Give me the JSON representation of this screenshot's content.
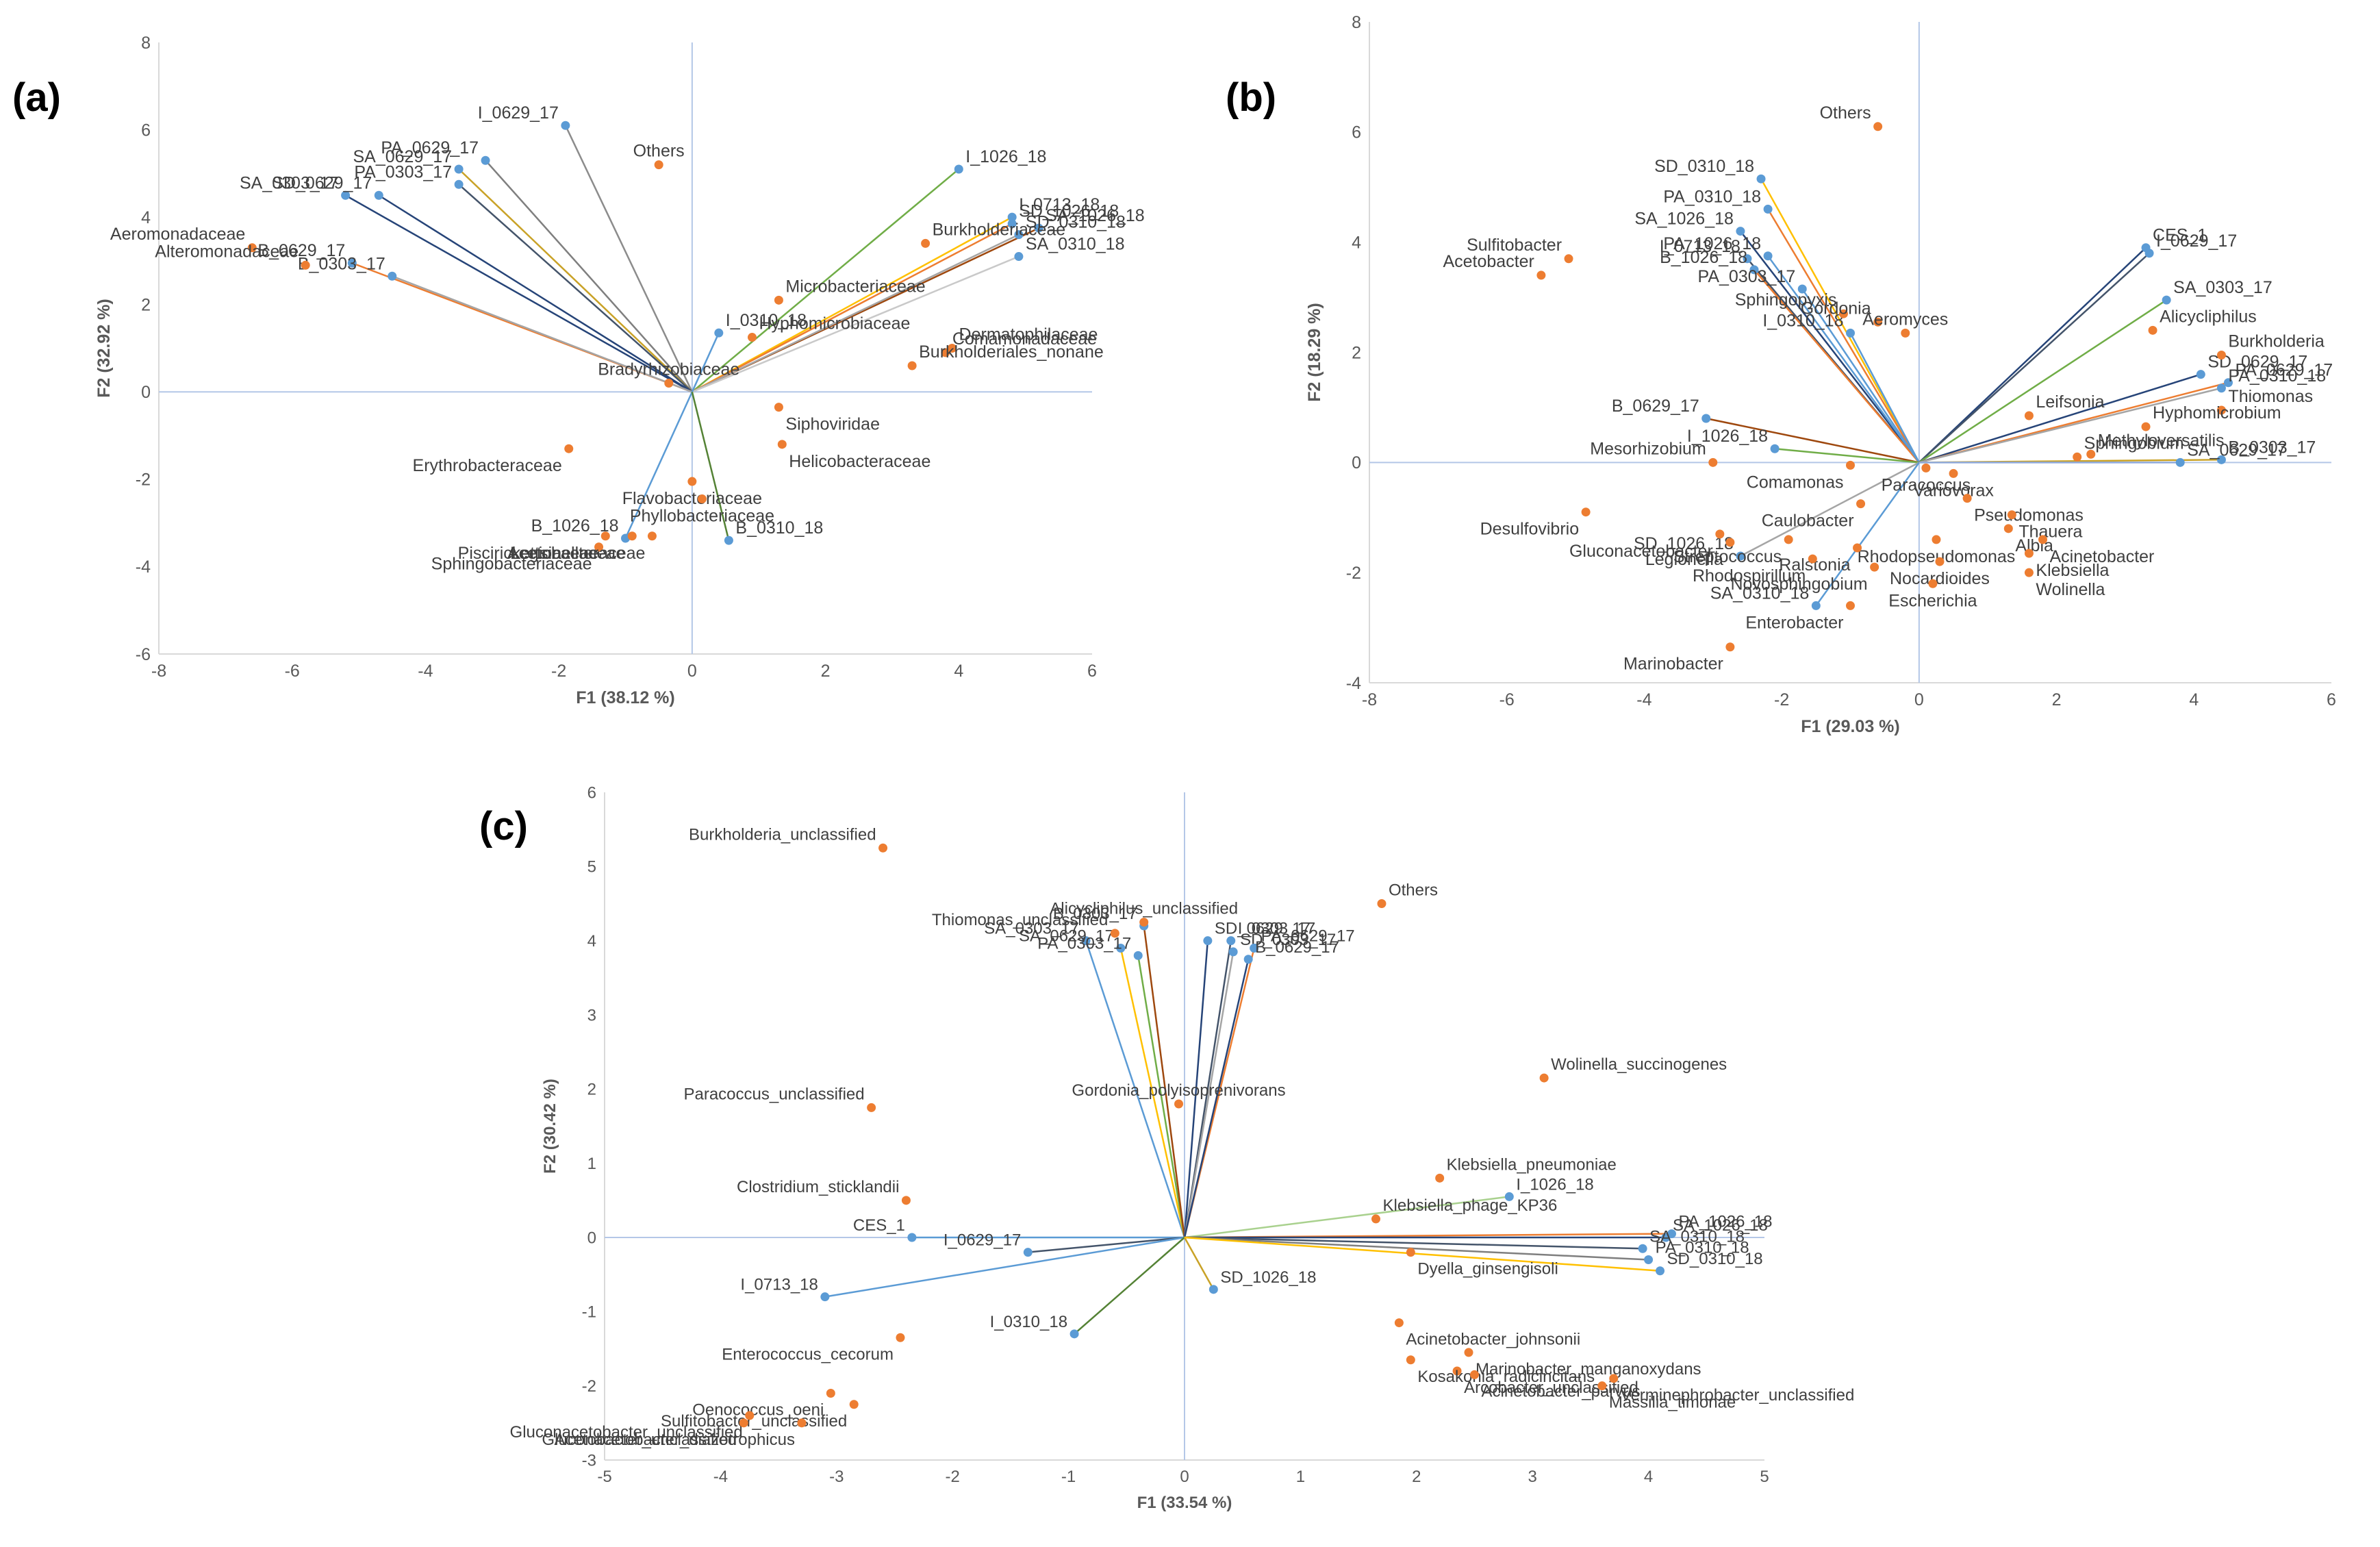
{
  "chart_data": [
    {
      "panel": "(a)",
      "type": "scatter",
      "subtype": "biplot",
      "xlabel": "F1 (38.12 %)",
      "ylabel": "F2 (32.92 %)",
      "xlim": [
        -8,
        6
      ],
      "ylim": [
        -6,
        8
      ],
      "xticks": [
        -8,
        -6,
        -4,
        -2,
        0,
        2,
        4,
        6
      ],
      "yticks": [
        -6,
        -4,
        -2,
        0,
        2,
        4,
        6,
        8
      ],
      "samples": [
        {
          "label": "I_0629_17",
          "x": -1.9,
          "y": 6.1,
          "color": "#8c8c8c"
        },
        {
          "label": "PA_0629_17",
          "x": -3.1,
          "y": 5.3,
          "color": "#7f7f7f"
        },
        {
          "label": "SA_0629_17",
          "x": -3.5,
          "y": 5.1,
          "color": "#c9a227"
        },
        {
          "label": "PA_0303_17",
          "x": -3.5,
          "y": 4.75,
          "color": "#44546a"
        },
        {
          "label": "SA_0303_17",
          "x": -5.2,
          "y": 4.5,
          "color": "#264478"
        },
        {
          "label": "SD_0629_17",
          "x": -4.7,
          "y": 4.5,
          "color": "#264478"
        },
        {
          "label": "B_0629_17",
          "x": -5.1,
          "y": 2.95,
          "color": "#ed7d31"
        },
        {
          "label": "B_0303_17",
          "x": -4.5,
          "y": 2.65,
          "color": "#a5a5a5"
        },
        {
          "label": "I_1026_18",
          "x": 4.0,
          "y": 5.1,
          "color": "#70ad47"
        },
        {
          "label": "I_0713_18",
          "x": 4.8,
          "y": 4.0,
          "color": "#ffc000"
        },
        {
          "label": "SD_1026_18",
          "x": 4.8,
          "y": 3.85,
          "color": "#ed7d31"
        },
        {
          "label": "SA_1026_18",
          "x": 5.2,
          "y": 3.75,
          "color": "#9e480e"
        },
        {
          "label": "SD_0310_18",
          "x": 4.9,
          "y": 3.6,
          "color": "#a5a5a5"
        },
        {
          "label": "SA_0310_18",
          "x": 4.9,
          "y": 3.1,
          "color": "#c9c9c9"
        },
        {
          "label": "I_0310_18",
          "x": 0.4,
          "y": 1.35,
          "color": "#5b9bd5"
        },
        {
          "label": "B_1026_18",
          "x": -1.0,
          "y": -3.35,
          "color": "#5b9bd5"
        },
        {
          "label": "B_0310_18",
          "x": 0.55,
          "y": -3.4,
          "color": "#548235"
        }
      ],
      "variables": [
        {
          "label": "Others",
          "x": -0.5,
          "y": 5.2
        },
        {
          "label": "Aeromonadaceae",
          "x": -6.6,
          "y": 3.3
        },
        {
          "label": "Alteromonadaceae",
          "x": -5.8,
          "y": 2.9
        },
        {
          "label": "Burkholderiaceae",
          "x": 3.5,
          "y": 3.4
        },
        {
          "label": "Microbacteriaceae",
          "x": 1.3,
          "y": 2.1
        },
        {
          "label": "Dermatophilaceae",
          "x": 3.9,
          "y": 1.0
        },
        {
          "label": "Comamonadaceae",
          "x": 3.8,
          "y": 0.9
        },
        {
          "label": "Hyphomicrobiaceae",
          "x": 0.9,
          "y": 1.25
        },
        {
          "label": "Burkholderiales_nonane",
          "x": 3.3,
          "y": 0.6
        },
        {
          "label": "Bradyrhizobiaceae",
          "x": -0.35,
          "y": 0.2
        },
        {
          "label": "Siphoviridae",
          "x": 1.3,
          "y": -0.35
        },
        {
          "label": "Helicobacteraceae",
          "x": 1.35,
          "y": -1.2
        },
        {
          "label": "Flavobacteriaceae",
          "x": 0.0,
          "y": -2.05
        },
        {
          "label": "Erythrobacteraceae",
          "x": -1.85,
          "y": -1.3
        },
        {
          "label": "Phyllobacteriaceae",
          "x": 0.15,
          "y": -2.45
        },
        {
          "label": "Legionellaceae",
          "x": -0.9,
          "y": -3.3
        },
        {
          "label": "Piscirickettsiaceae",
          "x": -1.3,
          "y": -3.3
        },
        {
          "label": "Sphingobacteriaceae",
          "x": -1.4,
          "y": -3.55
        },
        {
          "label": "Acetobacteraceae",
          "x": -0.6,
          "y": -3.3
        }
      ]
    },
    {
      "panel": "(b)",
      "type": "scatter",
      "subtype": "biplot",
      "xlabel": "F1 (29.03 %)",
      "ylabel": "F2 (18.29 %)",
      "xlim": [
        -8,
        6
      ],
      "ylim": [
        -4,
        8
      ],
      "xticks": [
        -8,
        -6,
        -4,
        -2,
        0,
        2,
        4,
        6
      ],
      "yticks": [
        -4,
        -2,
        0,
        2,
        4,
        6,
        8
      ],
      "samples": [
        {
          "label": "SD_0310_18",
          "x": -2.3,
          "y": 5.15,
          "color": "#ffc000"
        },
        {
          "label": "PA_0310_18",
          "x": -2.2,
          "y": 4.6,
          "color": "#ed7d31"
        },
        {
          "label": "SA_1026_18",
          "x": -2.6,
          "y": 4.2,
          "color": "#264478"
        },
        {
          "label": "PA_1026_18",
          "x": -2.2,
          "y": 3.75,
          "color": "#5b9bd5"
        },
        {
          "label": "I_0713_18",
          "x": -2.5,
          "y": 3.7,
          "color": "#44546a"
        },
        {
          "label": "B_1026_18",
          "x": -2.4,
          "y": 3.5,
          "color": "#ed7d31"
        },
        {
          "label": "PA_0303_17",
          "x": -1.7,
          "y": 3.15,
          "color": "#5b9bd5"
        },
        {
          "label": "I_0310_18",
          "x": -1.0,
          "y": 2.35,
          "color": "#5b9bd5"
        },
        {
          "label": "B_0629_17",
          "x": -3.1,
          "y": 0.8,
          "color": "#9e480e"
        },
        {
          "label": "I_1026_18",
          "x": -2.1,
          "y": 0.25,
          "color": "#70ad47"
        },
        {
          "label": "SD_1026_18",
          "x": -2.6,
          "y": -1.7,
          "color": "#a5a5a5"
        },
        {
          "label": "SA_0310_18",
          "x": -1.5,
          "y": -2.6,
          "color": "#5b9bd5"
        },
        {
          "label": "CES_1",
          "x": 3.3,
          "y": 3.9,
          "color": "#264478"
        },
        {
          "label": "I_0629_17",
          "x": 3.35,
          "y": 3.8,
          "color": "#44546a"
        },
        {
          "label": "SA_0303_17",
          "x": 3.6,
          "y": 2.95,
          "color": "#70ad47"
        },
        {
          "label": "SD_0629_17",
          "x": 4.1,
          "y": 1.6,
          "color": "#264478"
        },
        {
          "label": "PA_0629_17",
          "x": 4.5,
          "y": 1.45,
          "color": "#ed7d31"
        },
        {
          "label": "PA_0310_18",
          "x": 4.4,
          "y": 1.35,
          "color": "#a5a5a5"
        },
        {
          "label": "B_0303_17",
          "x": 4.4,
          "y": 0.05,
          "color": "#c9a227"
        },
        {
          "label": "SA_0629_17",
          "x": 3.8,
          "y": 0.0,
          "color": "#8faadc"
        }
      ],
      "variables": [
        {
          "label": "Others",
          "x": -0.6,
          "y": 6.1
        },
        {
          "label": "Sulfitobacter",
          "x": -5.1,
          "y": 3.7
        },
        {
          "label": "Acetobacter",
          "x": -5.5,
          "y": 3.4
        },
        {
          "label": "Sphingopyxis",
          "x": -1.1,
          "y": 2.7
        },
        {
          "label": "Gordonia",
          "x": -0.6,
          "y": 2.55
        },
        {
          "label": "Aeromyces",
          "x": -0.2,
          "y": 2.35
        },
        {
          "label": "Alicycliphilus",
          "x": 3.4,
          "y": 2.4
        },
        {
          "label": "Burkholderia",
          "x": 4.4,
          "y": 1.95
        },
        {
          "label": "Thiomonas",
          "x": 4.4,
          "y": 0.95
        },
        {
          "label": "Leifsonia",
          "x": 1.6,
          "y": 0.85
        },
        {
          "label": "Hyphomicrobium",
          "x": 3.3,
          "y": 0.65
        },
        {
          "label": "Methyloversatilis",
          "x": 2.5,
          "y": 0.15
        },
        {
          "label": "Paracoccus",
          "x": 0.1,
          "y": -0.1
        },
        {
          "label": "Sphingobium",
          "x": 2.3,
          "y": 0.1
        },
        {
          "label": "Desulfovibrio",
          "x": -4.85,
          "y": -0.9
        },
        {
          "label": "Mesorhizobium",
          "x": -3.0,
          "y": 0.0
        },
        {
          "label": "Comamonas",
          "x": -1.0,
          "y": -0.05
        },
        {
          "label": "Variovorax",
          "x": 0.5,
          "y": -0.2
        },
        {
          "label": "Pseudomonas",
          "x": 0.7,
          "y": -0.65
        },
        {
          "label": "Gluconacetobacter",
          "x": -2.9,
          "y": -1.3
        },
        {
          "label": "Caulobacter",
          "x": -0.85,
          "y": -0.75
        },
        {
          "label": "Streptococcus",
          "x": -1.9,
          "y": -1.4
        },
        {
          "label": "Legionella",
          "x": -2.75,
          "y": -1.45
        },
        {
          "label": "Thauera",
          "x": 1.35,
          "y": -0.95
        },
        {
          "label": "Albia",
          "x": 1.3,
          "y": -1.2
        },
        {
          "label": "Rhodopseudomonas",
          "x": 0.25,
          "y": -1.4
        },
        {
          "label": "Acinetobacter",
          "x": 1.8,
          "y": -1.4
        },
        {
          "label": "Ralstonia",
          "x": -0.9,
          "y": -1.55
        },
        {
          "label": "Klebsiella",
          "x": 1.6,
          "y": -1.65
        },
        {
          "label": "Nocardioides",
          "x": 0.3,
          "y": -1.8
        },
        {
          "label": "Rhodospirillum",
          "x": -1.55,
          "y": -1.75
        },
        {
          "label": "Novosphingobium",
          "x": -0.65,
          "y": -1.9
        },
        {
          "label": "Wolinella",
          "x": 1.6,
          "y": -2.0
        },
        {
          "label": "Escherichia",
          "x": 0.2,
          "y": -2.2
        },
        {
          "label": "Enterobacter",
          "x": -1.0,
          "y": -2.6
        },
        {
          "label": "Marinobacter",
          "x": -2.75,
          "y": -3.35
        }
      ]
    },
    {
      "panel": "(c)",
      "type": "scatter",
      "subtype": "biplot",
      "xlabel": "F1 (33.54 %)",
      "ylabel": "F2 (30.42 %)",
      "xlim": [
        -5,
        5
      ],
      "ylim": [
        -3,
        6
      ],
      "xticks": [
        -5,
        -4,
        -3,
        -2,
        -1,
        0,
        1,
        2,
        3,
        4,
        5
      ],
      "yticks": [
        -3,
        -2,
        -1,
        0,
        1,
        2,
        3,
        4,
        5,
        6
      ],
      "samples": [
        {
          "label": "SA_0303_17",
          "x": -0.85,
          "y": 4.0,
          "color": "#5b9bd5"
        },
        {
          "label": "SA_0629_17",
          "x": -0.55,
          "y": 3.9,
          "color": "#ffc000"
        },
        {
          "label": "PA_0303_17",
          "x": -0.4,
          "y": 3.8,
          "color": "#70ad47"
        },
        {
          "label": "B_0303_17",
          "x": -0.35,
          "y": 4.2,
          "color": "#9e480e"
        },
        {
          "label": "SD_0629_17",
          "x": 0.2,
          "y": 4.0,
          "color": "#264478"
        },
        {
          "label": "I_0303_17",
          "x": 0.4,
          "y": 4.0,
          "color": "#44546a"
        },
        {
          "label": "SD_0303_17",
          "x": 0.42,
          "y": 3.85,
          "color": "#a5a5a5"
        },
        {
          "label": "PA_0629_17",
          "x": 0.6,
          "y": 3.9,
          "color": "#ed7d31"
        },
        {
          "label": "B_0629_17",
          "x": 0.55,
          "y": 3.75,
          "color": "#264478"
        },
        {
          "label": "CES_1",
          "x": -2.35,
          "y": 0.0,
          "color": "#5b9bd5"
        },
        {
          "label": "I_0629_17",
          "x": -1.35,
          "y": -0.2,
          "color": "#44546a"
        },
        {
          "label": "I_0713_18",
          "x": -3.1,
          "y": -0.8,
          "color": "#5b9bd5"
        },
        {
          "label": "I_0310_18",
          "x": -0.95,
          "y": -1.3,
          "color": "#548235"
        },
        {
          "label": "SD_1026_18",
          "x": 0.25,
          "y": -0.7,
          "color": "#c9a227"
        },
        {
          "label": "I_1026_18",
          "x": 2.8,
          "y": 0.55,
          "color": "#a9d18e"
        },
        {
          "label": "PA_1026_18",
          "x": 4.2,
          "y": 0.05,
          "color": "#ed7d31"
        },
        {
          "label": "SA_1026_18",
          "x": 4.15,
          "y": 0.0,
          "color": "#264478"
        },
        {
          "label": "SA_0310_18",
          "x": 3.95,
          "y": -0.15,
          "color": "#44546a"
        },
        {
          "label": "PA_0310_18",
          "x": 4.0,
          "y": -0.3,
          "color": "#7f7f7f"
        },
        {
          "label": "SD_0310_18",
          "x": 4.1,
          "y": -0.45,
          "color": "#ffc000"
        }
      ],
      "variables": [
        {
          "label": "Burkholderia_unclassified",
          "x": -2.6,
          "y": 5.25
        },
        {
          "label": "Others",
          "x": 1.7,
          "y": 4.5
        },
        {
          "label": "Alicycliphilus_unclassified",
          "x": -0.35,
          "y": 4.25
        },
        {
          "label": "Thiomonas_unclassified",
          "x": -0.6,
          "y": 4.1
        },
        {
          "label": "Wolinella_succinogenes",
          "x": 3.1,
          "y": 2.15
        },
        {
          "label": "Gordonia_polyisoprenivorans",
          "x": -0.05,
          "y": 1.8
        },
        {
          "label": "Paracoccus_unclassified",
          "x": -2.7,
          "y": 1.75
        },
        {
          "label": "Clostridium_sticklandii",
          "x": -2.4,
          "y": 0.5
        },
        {
          "label": "Klebsiella_pneumoniae",
          "x": 2.2,
          "y": 0.8
        },
        {
          "label": "Klebsiella_phage_KP36",
          "x": 1.65,
          "y": 0.25
        },
        {
          "label": "Dyella_ginsengisoli",
          "x": 1.95,
          "y": -0.2
        },
        {
          "label": "Enterococcus_cecorum",
          "x": -2.45,
          "y": -1.35
        },
        {
          "label": "Acinetobacter_johnsonii",
          "x": 1.85,
          "y": -1.15
        },
        {
          "label": "Marinobacter_manganoxydans",
          "x": 2.45,
          "y": -1.55
        },
        {
          "label": "Arcobacter_unclassified",
          "x": 2.35,
          "y": -1.8
        },
        {
          "label": "Kosakonia_radicincitans",
          "x": 1.95,
          "y": -1.65
        },
        {
          "label": "Acinetobacter_parvus",
          "x": 2.5,
          "y": -1.85
        },
        {
          "label": "Massilia_timonae",
          "x": 3.6,
          "y": -2.0
        },
        {
          "label": "Verminephrobacter_unclassified",
          "x": 3.7,
          "y": -1.9
        },
        {
          "label": "Oenococcus_oeni",
          "x": -3.05,
          "y": -2.1
        },
        {
          "label": "Sulfitobacter_unclassified",
          "x": -2.85,
          "y": -2.25
        },
        {
          "label": "Gluconacetobacter_unclassified",
          "x": -3.75,
          "y": -2.4
        },
        {
          "label": "Gluconacetobacter_diazotrophicus",
          "x": -3.3,
          "y": -2.5
        },
        {
          "label": "Acetobacter_unclassified",
          "x": -3.8,
          "y": -2.5
        }
      ]
    }
  ],
  "figure": {
    "panel_labels": [
      "(a)",
      "(b)",
      "(c)"
    ],
    "variable_color": "#ed7d31",
    "sample_color": "#5b9bd5",
    "axis_color": "#d9d9d9",
    "text_color": "#404040"
  }
}
